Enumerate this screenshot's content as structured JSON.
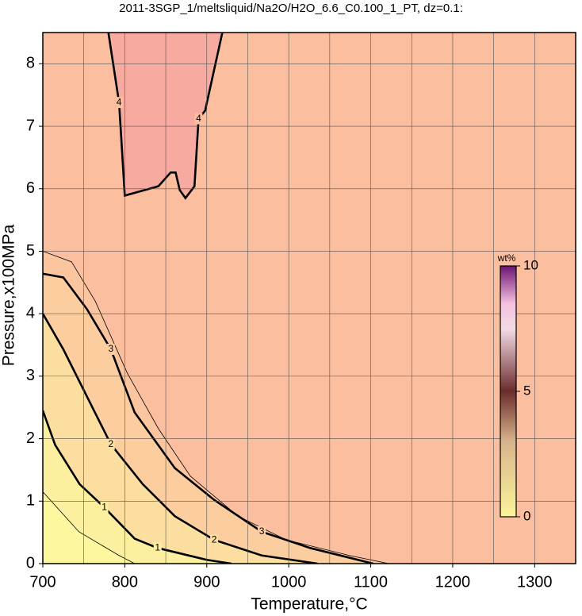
{
  "chart_data": {
    "type": "contour",
    "title": "2011-3SGP_1/meltsliquid/Na2O/H2O_6.6_C0.100_1_PT, dz=0.1:",
    "xlabel": "Temperature,°C",
    "ylabel": "Pressure,x100MPa",
    "xlim": [
      700,
      1350
    ],
    "ylim": [
      0,
      8.5
    ],
    "xticks": [
      700,
      800,
      900,
      1000,
      1100,
      1200,
      1300
    ],
    "yticks": [
      0,
      1,
      2,
      3,
      4,
      5,
      6,
      7,
      8
    ],
    "xgrid": [
      750,
      850,
      950,
      1050,
      1150,
      1250,
      1350
    ],
    "grid": true,
    "contours": [
      {
        "level": 4,
        "x": [
          780,
          793,
          800,
          841,
          856,
          862,
          867,
          874,
          885,
          890,
          898,
          919
        ],
        "y": [
          8.5,
          7.38,
          5.89,
          6.04,
          6.26,
          6.26,
          5.98,
          5.85,
          6.04,
          7.12,
          7.25,
          8.5
        ]
      },
      {
        "level": 3.5,
        "x": [
          700,
          735,
          764,
          803,
          841,
          880,
          938,
          997,
          1074,
          1122
        ],
        "y": [
          5.0,
          4.83,
          4.2,
          3.05,
          2.16,
          1.4,
          0.76,
          0.38,
          0.13,
          0
        ]
      },
      {
        "level": 3,
        "x": [
          700,
          725,
          754,
          783,
          812,
          861,
          909,
          967,
          1026,
          1103
        ],
        "y": [
          4.64,
          4.58,
          4.07,
          3.43,
          2.42,
          1.53,
          1.02,
          0.51,
          0.25,
          0
        ]
      },
      {
        "level": 2,
        "x": [
          700,
          725,
          754,
          783,
          822,
          861,
          909,
          967,
          1035
        ],
        "y": [
          4.0,
          3.43,
          2.67,
          1.91,
          1.27,
          0.76,
          0.38,
          0.13,
          0
        ]
      },
      {
        "level": 1,
        "x": [
          700,
          715,
          745,
          775,
          812,
          840,
          900,
          930
        ],
        "y": [
          2.45,
          1.9,
          1.27,
          0.9,
          0.4,
          0.25,
          0.06,
          0
        ]
      },
      {
        "level": 0.5,
        "x": [
          700,
          744,
          793,
          812
        ],
        "y": [
          1.15,
          0.51,
          0.13,
          0
        ]
      }
    ],
    "clim": [
      0,
      10
    ],
    "cticks": [
      0,
      5,
      10
    ],
    "clabel": "wt%"
  }
}
